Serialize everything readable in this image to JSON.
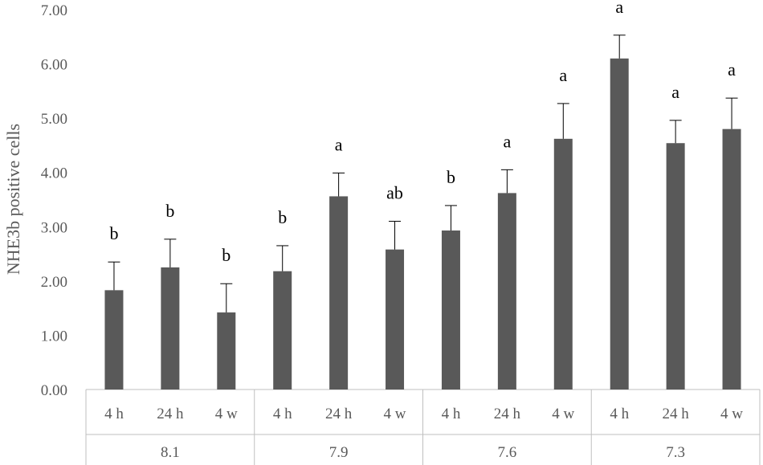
{
  "chart_data": {
    "type": "bar",
    "ylabel": "NHE3b positive cells",
    "ylim": [
      0,
      7
    ],
    "yticks": [
      "0.00",
      "1.00",
      "2.00",
      "3.00",
      "4.00",
      "5.00",
      "6.00",
      "7.00"
    ],
    "grid": false,
    "bar_color": "#595959",
    "groups": [
      {
        "label": "8.1",
        "bars": [
          {
            "category": "4 h",
            "value": 1.83,
            "error": 0.52,
            "sig": "b"
          },
          {
            "category": "24 h",
            "value": 2.25,
            "error": 0.52,
            "sig": "b"
          },
          {
            "category": "4 w",
            "value": 1.42,
            "error": 0.53,
            "sig": "b"
          }
        ]
      },
      {
        "label": "7.9",
        "bars": [
          {
            "category": "4 h",
            "value": 2.18,
            "error": 0.47,
            "sig": "b"
          },
          {
            "category": "24 h",
            "value": 3.56,
            "error": 0.43,
            "sig": "a"
          },
          {
            "category": "4 w",
            "value": 2.58,
            "error": 0.52,
            "sig": "ab"
          }
        ]
      },
      {
        "label": "7.6",
        "bars": [
          {
            "category": "4 h",
            "value": 2.93,
            "error": 0.46,
            "sig": "b"
          },
          {
            "category": "24 h",
            "value": 3.62,
            "error": 0.43,
            "sig": "a"
          },
          {
            "category": "4 w",
            "value": 4.62,
            "error": 0.65,
            "sig": "a"
          }
        ]
      },
      {
        "label": "7.3",
        "bars": [
          {
            "category": "4 h",
            "value": 6.1,
            "error": 0.43,
            "sig": "a"
          },
          {
            "category": "24 h",
            "value": 4.54,
            "error": 0.42,
            "sig": "a"
          },
          {
            "category": "4 w",
            "value": 4.8,
            "error": 0.57,
            "sig": "a"
          }
        ]
      }
    ]
  }
}
